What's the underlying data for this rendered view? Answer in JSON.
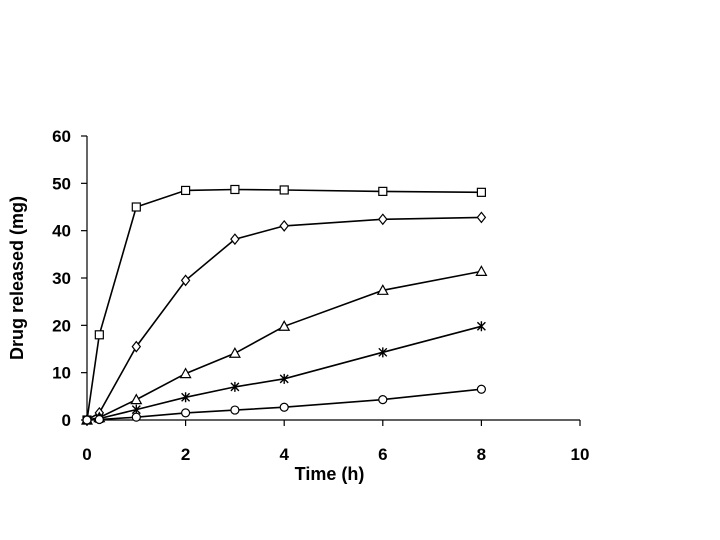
{
  "chart_data": {
    "type": "line",
    "title": "",
    "xlabel": "Time (h)",
    "ylabel": "Drug released (mg)",
    "xlim": [
      0,
      10
    ],
    "ylim": [
      0,
      60
    ],
    "x_ticks": [
      0,
      2,
      4,
      6,
      8,
      10
    ],
    "y_ticks": [
      0,
      10,
      20,
      30,
      40,
      50,
      60
    ],
    "grid": false,
    "legend": "none",
    "series": [
      {
        "marker": "square",
        "x": [
          0,
          0.25,
          1,
          2,
          3,
          4,
          6,
          8
        ],
        "y": [
          0,
          18,
          45,
          48.5,
          48.7,
          48.6,
          48.3,
          48.1
        ]
      },
      {
        "marker": "diamond",
        "x": [
          0,
          0.25,
          1,
          2,
          3,
          4,
          6,
          8
        ],
        "y": [
          0,
          1.5,
          15.5,
          29.5,
          38.2,
          41,
          42.4,
          42.8
        ]
      },
      {
        "marker": "triangle",
        "x": [
          0,
          0.25,
          1,
          2,
          3,
          4,
          6,
          8
        ],
        "y": [
          0,
          0.5,
          4.3,
          9.8,
          14.1,
          19.8,
          27.4,
          31.4
        ]
      },
      {
        "marker": "star",
        "x": [
          0,
          0.25,
          1,
          2,
          3,
          4,
          6,
          8
        ],
        "y": [
          0,
          0.3,
          2.2,
          4.8,
          7,
          8.7,
          14.3,
          19.8
        ]
      },
      {
        "marker": "circle",
        "x": [
          0,
          0.25,
          1,
          2,
          3,
          4,
          6,
          8
        ],
        "y": [
          0,
          0.1,
          0.6,
          1.5,
          2.1,
          2.7,
          4.3,
          6.5
        ]
      }
    ]
  }
}
